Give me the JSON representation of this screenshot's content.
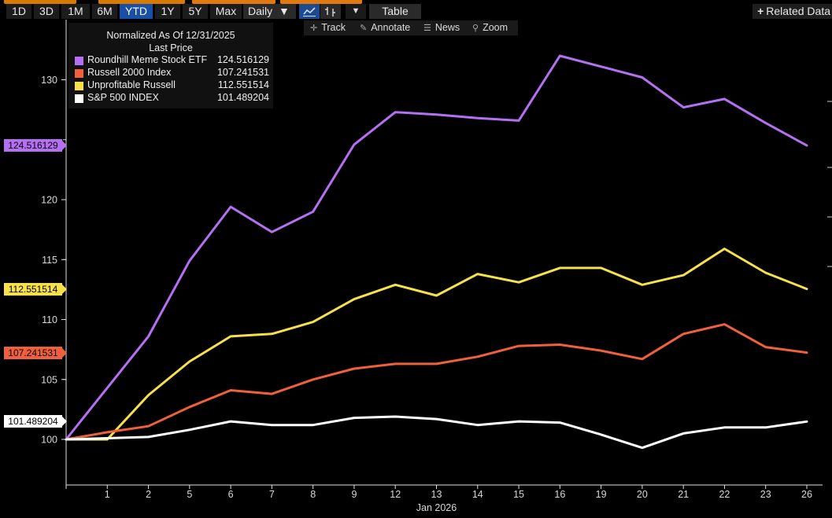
{
  "toolbar": {
    "ranges": [
      "1D",
      "3D",
      "1M",
      "6M",
      "YTD",
      "1Y",
      "5Y",
      "Max"
    ],
    "active_range": "YTD",
    "frequency": "Daily",
    "table_label": "Table",
    "related_label": "Related Data"
  },
  "tools": [
    {
      "icon": "crosshair-icon",
      "label": "Track"
    },
    {
      "icon": "pencil-icon",
      "label": "Annotate"
    },
    {
      "icon": "news-icon",
      "label": "News"
    },
    {
      "icon": "magnifier-icon",
      "label": "Zoom"
    }
  ],
  "legend": {
    "header1": "Normalized As Of 12/31/2025",
    "header2": "Last Price",
    "items": [
      {
        "name": "Roundhill Meme Stock ETF",
        "value": "124.516129",
        "color": "#b56ff2"
      },
      {
        "name": "Russell 2000 Index",
        "value": "107.241531",
        "color": "#f0603a"
      },
      {
        "name": "Unprofitable Russell",
        "value": "112.551514",
        "color": "#f7e04a"
      },
      {
        "name": "S&P 500 INDEX",
        "value": "101.489204",
        "color": "#ffffff"
      }
    ]
  },
  "chart_data": {
    "type": "line",
    "xlabel": "Jan 2026",
    "x": [
      "",
      "1",
      "2",
      "5",
      "6",
      "7",
      "8",
      "9",
      "12",
      "13",
      "14",
      "15",
      "16",
      "19",
      "20",
      "21",
      "22",
      "23",
      "26"
    ],
    "ylim": [
      96,
      134
    ],
    "yticks": [
      100,
      105,
      110,
      115,
      120,
      130
    ],
    "grid": false,
    "legend_position": "top-left",
    "series": [
      {
        "name": "Roundhill Meme Stock ETF",
        "color": "#b56ff2",
        "last": "124.516129",
        "values": [
          100,
          104.3,
          108.6,
          114.9,
          119.4,
          117.3,
          119.0,
          124.6,
          127.3,
          127.1,
          126.8,
          126.6,
          132.0,
          131.1,
          130.2,
          127.7,
          128.4,
          126.4,
          124.52
        ]
      },
      {
        "name": "Unprofitable Russell",
        "color": "#f7e04a",
        "last": "112.551514",
        "values": [
          100,
          100.0,
          103.7,
          106.5,
          108.6,
          108.8,
          109.8,
          111.7,
          112.9,
          112.0,
          113.8,
          113.1,
          114.3,
          114.3,
          112.9,
          113.7,
          115.9,
          113.9,
          112.55
        ]
      },
      {
        "name": "Russell 2000 Index",
        "color": "#f0603a",
        "last": "107.241531",
        "values": [
          100,
          100.6,
          101.1,
          102.7,
          104.1,
          103.8,
          105.0,
          105.9,
          106.3,
          106.3,
          106.9,
          107.8,
          107.9,
          107.4,
          106.7,
          108.8,
          109.6,
          107.7,
          107.24
        ]
      },
      {
        "name": "S&P 500 INDEX",
        "color": "#ffffff",
        "last": "101.489204",
        "values": [
          100,
          100.1,
          100.2,
          100.8,
          101.5,
          101.2,
          101.2,
          101.8,
          101.9,
          101.7,
          101.2,
          101.5,
          101.4,
          100.4,
          99.3,
          100.5,
          101.0,
          101.0,
          101.49
        ]
      }
    ]
  }
}
